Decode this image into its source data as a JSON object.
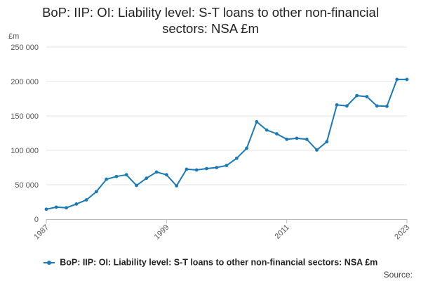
{
  "title_line1": "BoP: IIP: OI: Liability level: S-T loans to other non-financial",
  "title_line2": "sectors: NSA £m",
  "unit_label": "£m",
  "legend_label": "BoP: IIP: OI: Liability level: S-T loans to other non-financial sectors: NSA £m",
  "source_label": "Source:",
  "series_color": "#1a79b7",
  "chart_data": {
    "type": "line",
    "title": "BoP: IIP: OI: Liability level: S-T loans to other non-financial sectors: NSA £m",
    "ylabel": "£m",
    "xlim": [
      1987,
      2023
    ],
    "ylim": [
      0,
      250000
    ],
    "yticks": [
      0,
      50000,
      100000,
      150000,
      200000,
      250000
    ],
    "ytick_labels": [
      "0",
      "50 000",
      "100 000",
      "150 000",
      "200 000",
      "250 000"
    ],
    "xticks": [
      1987,
      1999,
      2011,
      2023
    ],
    "xtick_labels": [
      "1987",
      "1999",
      "2011",
      "2023"
    ],
    "grid": true,
    "legend_position": "bottom",
    "series": [
      {
        "name": "BoP: IIP: OI: Liability level: S-T loans to other non-financial sectors: NSA £m",
        "x": [
          1987,
          1988,
          1989,
          1990,
          1991,
          1992,
          1993,
          1994,
          1995,
          1996,
          1997,
          1998,
          1999,
          2000,
          2001,
          2002,
          2003,
          2004,
          2005,
          2006,
          2007,
          2008,
          2009,
          2010,
          2011,
          2012,
          2013,
          2014,
          2015,
          2016,
          2017,
          2018,
          2019,
          2020,
          2021,
          2022,
          2023
        ],
        "values": [
          14500,
          17500,
          16500,
          22000,
          28000,
          40000,
          58000,
          62000,
          64500,
          49000,
          59500,
          68500,
          64500,
          48500,
          72500,
          71500,
          73500,
          75000,
          78000,
          88500,
          103000,
          141500,
          129500,
          124000,
          116000,
          117500,
          116000,
          100500,
          112500,
          166000,
          164500,
          179500,
          178000,
          164500,
          164000,
          203000,
          203000
        ]
      }
    ]
  }
}
